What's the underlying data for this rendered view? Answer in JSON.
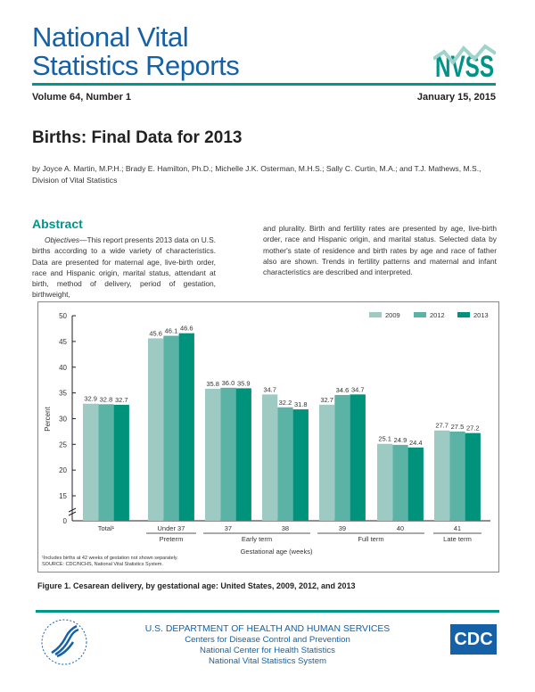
{
  "masthead": {
    "line1": "National Vital",
    "line2": "Statistics Reports",
    "logo_text": "NVSS"
  },
  "issue": {
    "volume": "Volume 64, Number 1",
    "date": "January 15, 2015"
  },
  "report_title": "Births: Final Data for 2013",
  "authors": "by Joyce A. Martin, M.P.H.; Brady E. Hamilton, Ph.D.; Michelle J.K. Osterman, M.H.S.; Sally C. Curtin, M.A.; and T.J. Mathews, M.S.,",
  "division": "Division of Vital Statistics",
  "abstract": {
    "heading": "Abstract",
    "objectives_label": "Objectives",
    "col1": "—This report presents 2013 data on U.S. births according to a wide variety of characteristics. Data are presented for maternal age, live-birth order, race and Hispanic origin, marital status, attendant at birth, method of delivery, period of gestation, birthweight,",
    "col2": "and plurality. Birth and fertility rates are presented by age, live-birth order, race and Hispanic origin, and marital status. Selected data by mother's state of residence and birth rates by age and race of father also are shown. Trends in fertility patterns and maternal and infant characteristics are described and interpreted."
  },
  "chart_data": {
    "type": "bar",
    "ylabel": "Percent",
    "xlabel": "Gestational age (weeks)",
    "ylim": [
      0,
      50
    ],
    "yticks": [
      "0",
      "15",
      "20",
      "25",
      "30",
      "35",
      "40",
      "45",
      "50"
    ],
    "axis_break": "between 0 and 15",
    "categories": [
      "Total¹",
      "Under 37",
      "37",
      "38",
      "39",
      "40",
      "41"
    ],
    "category_groups": [
      {
        "label": "Preterm",
        "categories": [
          "Under 37"
        ]
      },
      {
        "label": "Early term",
        "categories": [
          "37",
          "38"
        ]
      },
      {
        "label": "Full term",
        "categories": [
          "39",
          "40"
        ]
      },
      {
        "label": "Late term",
        "categories": [
          "41"
        ]
      }
    ],
    "series": [
      {
        "name": "2009",
        "color": "#9dcbc4",
        "values": [
          32.9,
          45.6,
          35.8,
          34.7,
          32.7,
          25.1,
          27.7
        ]
      },
      {
        "name": "2012",
        "color": "#5bb3a6",
        "values": [
          32.8,
          46.1,
          36.0,
          32.2,
          34.6,
          24.9,
          27.5
        ]
      },
      {
        "name": "2013",
        "color": "#00927a",
        "values": [
          32.7,
          46.6,
          35.9,
          31.8,
          34.7,
          24.4,
          27.2
        ]
      }
    ],
    "legend_position": "top-right",
    "grid": false,
    "footnote": "¹Includes births at 42 weeks of gestation not shown separately.",
    "source": "SOURCE: CDC/NCHS, National Vital Statistics System."
  },
  "figure_caption": "Figure 1. Cesarean delivery, by gestational age: United States, 2009, 2012, and 2013",
  "footer": {
    "dept": "U.S. DEPARTMENT OF HEALTH AND HUMAN SERVICES",
    "line2": "Centers for Disease Control and Prevention",
    "line3": "National Center for Health Statistics",
    "line4": "National Vital Statistics System",
    "cdc_logo_text": "CDC"
  },
  "colors": {
    "brand_blue": "#1561a8",
    "teal": "#00968a"
  }
}
